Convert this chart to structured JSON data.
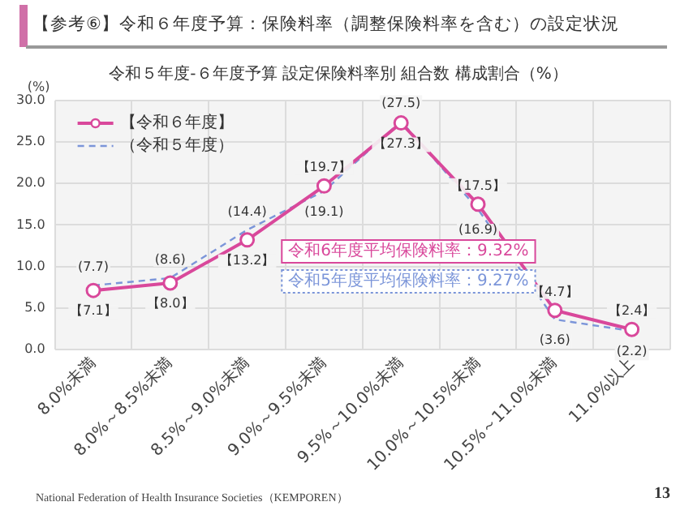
{
  "chart_data": {
    "type": "line",
    "title": "【参考⑥】令和６年度予算：保険料率（調整保険料率を含む）の設定状況",
    "subtitle": "令和５年度‐６年度予算 設定保険料率別 組合数 構成割合（%）",
    "ylabel": "(%)",
    "categories": [
      "8.0%未満",
      "8.0%～8.5%未満",
      "8.5%～9.0%未満",
      "9.0%～9.5%未満",
      "9.5%～10.0%未満",
      "10.0%～10.5%未満",
      "10.5%～11.0%未満",
      "11.0%以上"
    ],
    "series": [
      {
        "name": "【令和６年度】",
        "color": "#d9489b",
        "marker": "circle",
        "line_style": "solid",
        "values": [
          7.1,
          8.0,
          13.2,
          19.7,
          27.3,
          17.5,
          4.7,
          2.4
        ],
        "value_labels": [
          "【7.1】",
          "【8.0】",
          "【13.2】",
          "【19.7】",
          "【27.3】",
          "【17.5】",
          "【4.7】",
          "【2.4】"
        ]
      },
      {
        "name": "（令和５年度）",
        "color": "#7b95d9",
        "marker": "none",
        "line_style": "dashed",
        "values": [
          7.7,
          8.6,
          14.4,
          19.1,
          27.5,
          16.9,
          3.6,
          2.2
        ],
        "value_labels": [
          "(7.7)",
          "(8.6)",
          "(14.4)",
          "(19.1)",
          "(27.5)",
          "(16.9)",
          "(3.6)",
          "(2.2)"
        ]
      }
    ],
    "ylim": [
      0,
      30
    ],
    "yticks": [
      {
        "value": 0,
        "label": "0.0"
      },
      {
        "value": 5,
        "label": "5.0"
      },
      {
        "value": 10,
        "label": "10.0"
      },
      {
        "value": 15,
        "label": "15.0"
      },
      {
        "value": 20,
        "label": "20.0"
      },
      {
        "value": 25,
        "label": "25.0"
      },
      {
        "value": 30,
        "label": "30.0"
      }
    ],
    "grid": true,
    "legend": "top left",
    "annotations": [
      "令和6年度平均保険料率：9.32%",
      "令和5年度平均保険料率：9.27%",
      "National Federation of Health Insurance Societies（KEMPOREN）",
      "13"
    ]
  }
}
